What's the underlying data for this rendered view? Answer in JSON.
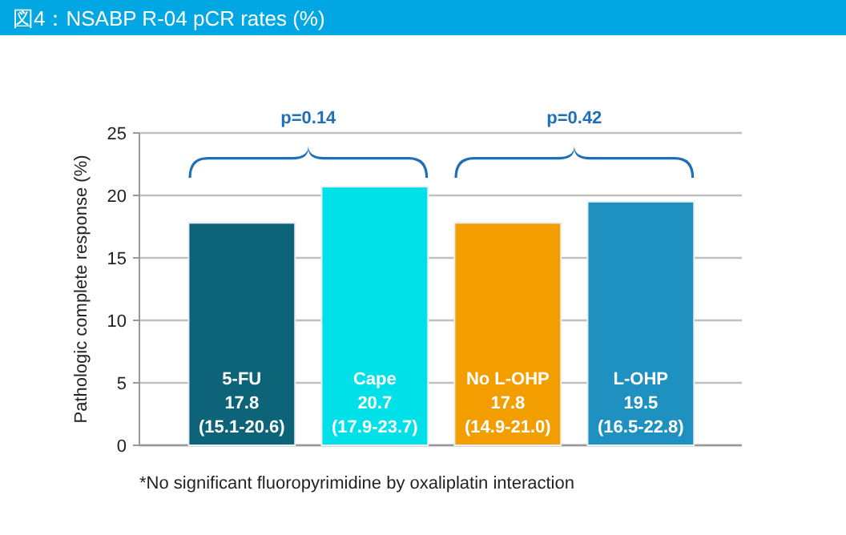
{
  "chart_data": {
    "type": "bar",
    "title": "図4：NSABP R-04 pCR rates (%)",
    "ylabel": "Pathologic complete response (%)",
    "categories": [
      "5-FU",
      "Cape",
      "No L-OHP",
      "L-OHP"
    ],
    "values": [
      17.8,
      20.7,
      17.8,
      19.5
    ],
    "colors": [
      "#0d6479",
      "#00e0e8",
      "#f29e00",
      "#1e91c0"
    ],
    "value_labels": [
      "17.8\n(15.1-20.6)",
      "20.7\n(17.9-23.7)",
      "17.8\n(14.9-21.0)",
      "19.5\n(16.5-22.8)"
    ],
    "ylim": [
      0,
      25
    ],
    "yticks": [
      0,
      5,
      10,
      15,
      20,
      25
    ],
    "grid": "y",
    "annotations": [
      "p=0.14",
      "p=0.42",
      "*No significant fluoropyrimidine by oxaliplatin interaction"
    ]
  }
}
